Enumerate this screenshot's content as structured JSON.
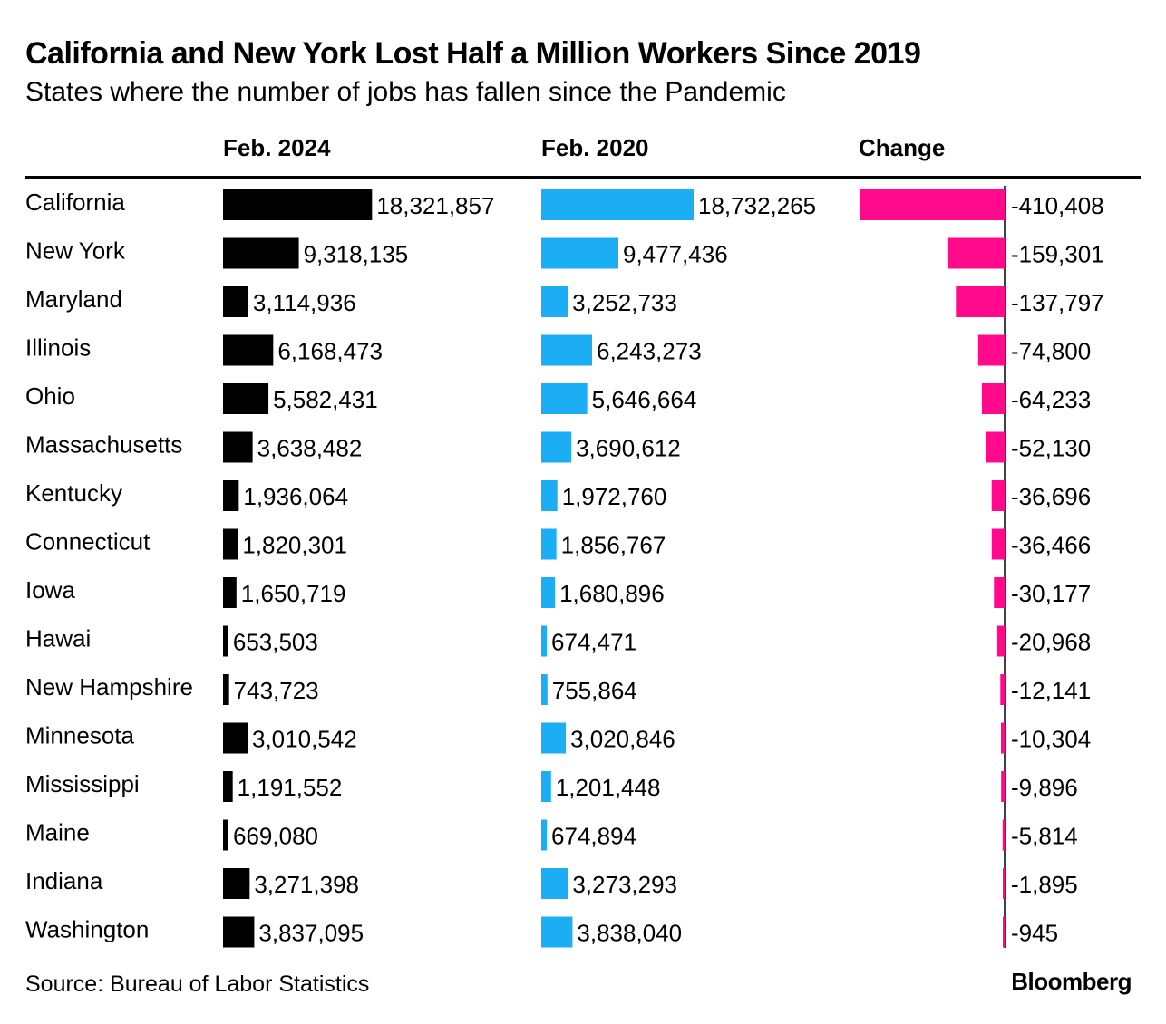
{
  "chart_data": {
    "type": "bar",
    "title": "California and New York Lost Half a Million Workers Since 2019",
    "subtitle": "States where the number of jobs has fallen since the Pandemic",
    "columns": [
      "Feb. 2024",
      "Feb. 2020",
      "Change"
    ],
    "categories": [
      "California",
      "New York",
      "Maryland",
      "Illinois",
      "Ohio",
      "Massachusetts",
      "Kentucky",
      "Connecticut",
      "Iowa",
      "Hawai",
      "New Hampshire",
      "Minnesota",
      "Mississippi",
      "Maine",
      "Indiana",
      "Washington"
    ],
    "series": [
      {
        "name": "Feb. 2024",
        "color": "#000000",
        "values": [
          18321857,
          9318135,
          3114936,
          6168473,
          5582431,
          3638482,
          1936064,
          1820301,
          1650719,
          653503,
          743723,
          3010542,
          1191552,
          669080,
          3271398,
          3837095
        ],
        "labels": [
          "18,321,857",
          "9,318,135",
          "3,114,936",
          "6,168,473",
          "5,582,431",
          "3,638,482",
          "1,936,064",
          "1,820,301",
          "1,650,719",
          "653,503",
          "743,723",
          "3,010,542",
          "1,191,552",
          "669,080",
          "3,271,398",
          "3,837,095"
        ]
      },
      {
        "name": "Feb. 2020",
        "color": "#1BAEF4",
        "values": [
          18732265,
          9477436,
          3252733,
          6243273,
          5646664,
          3690612,
          1972760,
          1856767,
          1680896,
          674471,
          755864,
          3020846,
          1201448,
          674894,
          3273293,
          3838040
        ],
        "labels": [
          "18,732,265",
          "9,477,436",
          "3,252,733",
          "6,243,273",
          "5,646,664",
          "3,690,612",
          "1,972,760",
          "1,856,767",
          "1,680,896",
          "674,471",
          "755,864",
          "3,020,846",
          "1,201,448",
          "674,894",
          "3,273,293",
          "3,838,040"
        ]
      },
      {
        "name": "Change",
        "color": "#FF0A8D",
        "values": [
          -410408,
          -159301,
          -137797,
          -74800,
          -64233,
          -52130,
          -36696,
          -36466,
          -30177,
          -20968,
          -12141,
          -10304,
          -9896,
          -5814,
          -1895,
          -945
        ],
        "labels": [
          "-410,408",
          "-159,301",
          "-137,797",
          "-74,800",
          "-64,233",
          "-52,130",
          "-36,696",
          "-36,466",
          "-30,177",
          "-20,968",
          "-12,141",
          "-10,304",
          "-9,896",
          "-5,814",
          "-1,895",
          "-945"
        ]
      }
    ],
    "source": "Source: Bureau of Labor Statistics",
    "brand": "Bloomberg"
  }
}
